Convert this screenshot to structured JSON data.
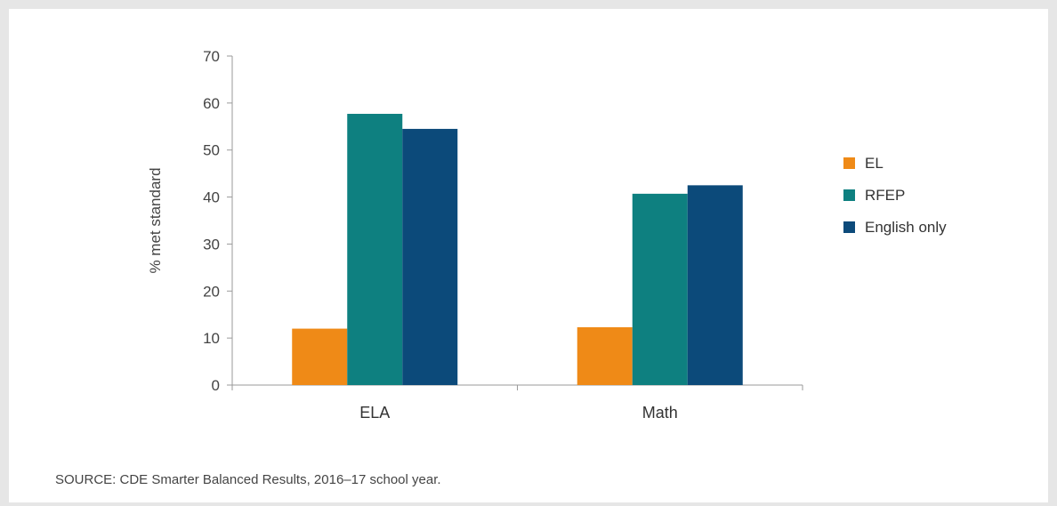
{
  "chart_data": {
    "type": "bar",
    "title": "",
    "xlabel": "",
    "ylabel": "% met standard",
    "categories": [
      "ELA",
      "Math"
    ],
    "ylim": [
      0,
      70
    ],
    "yticks": [
      0,
      10,
      20,
      30,
      40,
      50,
      60,
      70
    ],
    "grid": false,
    "legend_position": "right",
    "series": [
      {
        "name": "EL",
        "color": "#ef8a17",
        "values": [
          12,
          12.3
        ]
      },
      {
        "name": "RFEP",
        "color": "#0e8080",
        "values": [
          57.7,
          40.7
        ]
      },
      {
        "name": "English only",
        "color": "#0c4a7a",
        "values": [
          54.5,
          42.5
        ]
      }
    ]
  },
  "source_note": "SOURCE: CDE Smarter Balanced Results, 2016–17 school year."
}
